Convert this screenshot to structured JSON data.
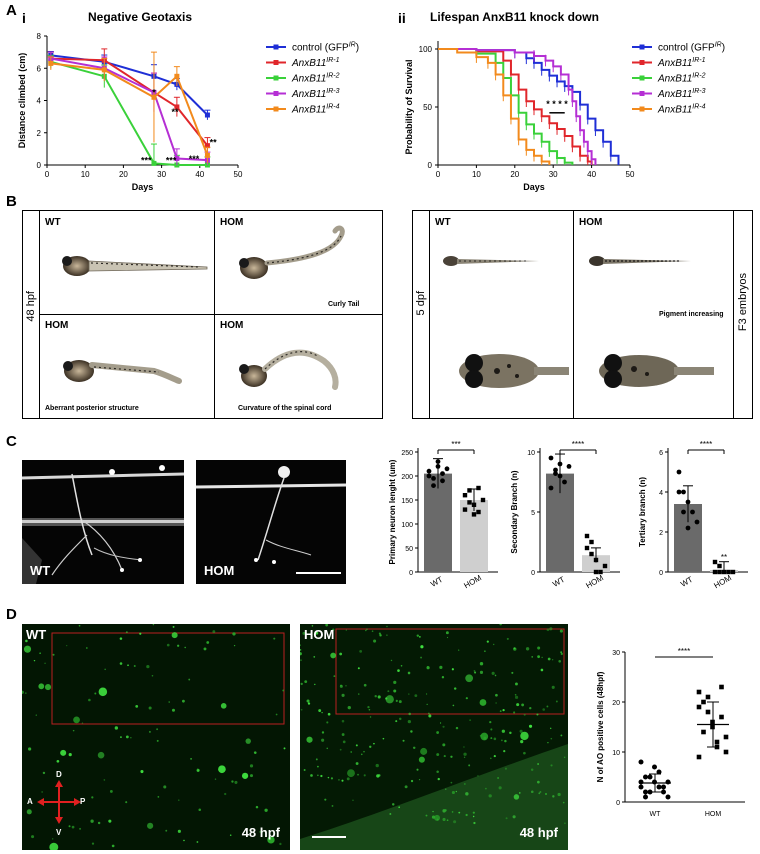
{
  "panels": {
    "A": {
      "letter": "A",
      "i": {
        "roman": "i",
        "title": "Negative Geotaxis",
        "xlabel": "Days",
        "ylabel": "Distance climbed (cm)",
        "xticks": [
          "0",
          "10",
          "20",
          "30",
          "40",
          "50"
        ],
        "yticks": [
          "0",
          "2",
          "4",
          "6",
          "8"
        ],
        "sig": [
          "*",
          "**",
          "***",
          "***",
          "***",
          "**"
        ]
      },
      "ii": {
        "roman": "ii",
        "title": "Lifespan AnxB11 knock down",
        "xlabel": "Days",
        "ylabel": "Probability of Survival",
        "xticks": [
          "0",
          "10",
          "20",
          "30",
          "40",
          "50"
        ],
        "yticks": [
          "0",
          "50",
          "100"
        ],
        "sig": "* * * *"
      },
      "legend": [
        {
          "name": "control (GFP",
          "sup": "IR",
          "tail": ")",
          "color": "#1f2fd6"
        },
        {
          "name": "AnxB11",
          "sup": "IR-1",
          "tail": "",
          "color": "#e0262b"
        },
        {
          "name": "AnxB11",
          "sup": "IR-2",
          "tail": "",
          "color": "#3ad13a"
        },
        {
          "name": "AnxB11",
          "sup": "IR-3",
          "tail": "",
          "color": "#b52fd4"
        },
        {
          "name": "AnxB11",
          "sup": "IR-4",
          "tail": "",
          "color": "#f28a1c"
        }
      ]
    },
    "B": {
      "letter": "B",
      "left": {
        "side_label": "48 hpf",
        "cells": [
          {
            "label": "WT",
            "caption": ""
          },
          {
            "label": "HOM",
            "caption": "Curly Tail"
          },
          {
            "label": "HOM",
            "caption": "Aberrant posterior structure"
          },
          {
            "label": "HOM",
            "caption": "Curvature of the spinal cord"
          }
        ]
      },
      "right": {
        "side_label": "5 dpf",
        "right_label": "F3 embryos",
        "cells": [
          {
            "label": "WT",
            "caption": ""
          },
          {
            "label": "HOM",
            "caption": "Pigment increasing"
          }
        ]
      }
    },
    "C": {
      "letter": "C",
      "img_labels": [
        "WT",
        "HOM"
      ],
      "bars": [
        {
          "ylabel": "Primary neuron lenght (um)",
          "yticks": [
            "0",
            "50",
            "100",
            "150",
            "200",
            "250"
          ],
          "sig": "***",
          "cats": [
            "WT",
            "HOM"
          ]
        },
        {
          "ylabel": "Secondary Branch (n)",
          "yticks": [
            "0",
            "5",
            "10"
          ],
          "sig": "****",
          "cats": [
            "WT",
            "HOM"
          ]
        },
        {
          "ylabel": "Tertiary branch (n)",
          "yticks": [
            "0",
            "2",
            "4",
            "6"
          ],
          "sig": "****",
          "cats": [
            "WT",
            "HOM"
          ],
          "extra": "**"
        }
      ]
    },
    "D": {
      "letter": "D",
      "img_labels": [
        "WT",
        "HOM"
      ],
      "time_labels": [
        "48 hpf",
        "48 hpf"
      ],
      "axes": {
        "D": "D",
        "A": "A",
        "P": "P",
        "V": "V"
      },
      "plot": {
        "ylabel": "N of AO positive cells (48hpf)",
        "yticks": [
          "0",
          "10",
          "20",
          "30"
        ],
        "cats": [
          "WT",
          "HOM"
        ],
        "sig": "****"
      }
    }
  },
  "chart_data": [
    {
      "type": "line",
      "title": "Negative Geotaxis",
      "xlabel": "Days",
      "ylabel": "Distance climbed (cm)",
      "xlim": [
        0,
        50
      ],
      "ylim": [
        0,
        8
      ],
      "series": [
        {
          "name": "control (GFPIR)",
          "x": [
            1,
            15,
            28,
            34,
            42
          ],
          "y": [
            6.8,
            6.4,
            5.5,
            5.0,
            3.1
          ]
        },
        {
          "name": "AnxB11IR-1",
          "x": [
            1,
            15,
            28,
            34,
            42
          ],
          "y": [
            6.6,
            6.5,
            4.5,
            3.6,
            1.2
          ]
        },
        {
          "name": "AnxB11IR-2",
          "x": [
            1,
            15,
            28,
            34,
            42
          ],
          "y": [
            6.4,
            5.5,
            0.1,
            0.0,
            0.0
          ]
        },
        {
          "name": "AnxB11IR-3",
          "x": [
            1,
            15,
            28,
            34,
            42
          ],
          "y": [
            6.6,
            6.0,
            4.5,
            0.4,
            0.3
          ]
        },
        {
          "name": "AnxB11IR-4",
          "x": [
            1,
            15,
            28,
            34,
            42
          ],
          "y": [
            6.3,
            5.9,
            4.2,
            5.5,
            0.6
          ]
        }
      ]
    },
    {
      "type": "line",
      "title": "Lifespan AnxB11 knock down",
      "xlabel": "Days",
      "ylabel": "Probability of Survival",
      "xlim": [
        0,
        50
      ],
      "ylim": [
        0,
        100
      ],
      "series": [
        {
          "name": "control (GFPIR)",
          "x": [
            0,
            10,
            20,
            23,
            25,
            27,
            29,
            31,
            33,
            35,
            37,
            39,
            41,
            43,
            45,
            47
          ],
          "y": [
            100,
            99,
            97,
            92,
            88,
            82,
            77,
            72,
            68,
            63,
            52,
            40,
            30,
            20,
            8,
            0
          ]
        },
        {
          "name": "AnxB11IR-1",
          "x": [
            0,
            10,
            17,
            19,
            21,
            23,
            25,
            27,
            29,
            31,
            33,
            35,
            37,
            39,
            40
          ],
          "y": [
            100,
            98,
            90,
            78,
            65,
            55,
            48,
            42,
            36,
            31,
            25,
            16,
            8,
            3,
            0
          ]
        },
        {
          "name": "AnxB11IR-2",
          "x": [
            0,
            10,
            15,
            17,
            19,
            21,
            23,
            25,
            27,
            29,
            31,
            33,
            35
          ],
          "y": [
            100,
            96,
            88,
            75,
            60,
            45,
            35,
            27,
            20,
            12,
            6,
            2,
            0
          ]
        },
        {
          "name": "AnxB11IR-3",
          "x": [
            0,
            10,
            20,
            25,
            28,
            30,
            32,
            34,
            35,
            36,
            37,
            38,
            39,
            40,
            41
          ],
          "y": [
            100,
            99,
            97,
            94,
            90,
            85,
            78,
            65,
            55,
            42,
            30,
            20,
            12,
            5,
            0
          ]
        },
        {
          "name": "AnxB11IR-4",
          "x": [
            0,
            5,
            10,
            13,
            15,
            17,
            19,
            21,
            23,
            25,
            27,
            29
          ],
          "y": [
            100,
            97,
            93,
            88,
            78,
            60,
            40,
            22,
            13,
            8,
            3,
            0
          ]
        }
      ]
    },
    {
      "type": "bar",
      "ylabel": "Primary neuron lenght (um)",
      "categories": [
        "WT",
        "HOM"
      ],
      "values": [
        205,
        150
      ],
      "ylim": [
        0,
        250
      ],
      "points": [
        [
          210,
          195,
          230,
          190,
          215,
          200,
          180,
          220,
          205
        ],
        [
          160,
          145,
          120,
          175,
          150,
          130,
          170,
          140,
          125
        ]
      ]
    },
    {
      "type": "bar",
      "ylabel": "Secondary Branch (n)",
      "categories": [
        "WT",
        "HOM"
      ],
      "values": [
        8.2,
        1.4
      ],
      "ylim": [
        0,
        10
      ],
      "points": [
        [
          9.5,
          8.5,
          8,
          7.5,
          8.8,
          7,
          8.2,
          9
        ],
        [
          3,
          2.5,
          1,
          0,
          0.5,
          2,
          1.5,
          0
        ]
      ]
    },
    {
      "type": "bar",
      "ylabel": "Tertiary branch (n)",
      "categories": [
        "WT",
        "HOM"
      ],
      "values": [
        3.4,
        0.1
      ],
      "ylim": [
        0,
        6
      ],
      "points": [
        [
          5,
          4,
          3.5,
          3,
          2.5,
          4,
          3,
          2.2
        ],
        [
          0.5,
          0,
          0,
          0,
          0,
          0,
          0.3
        ]
      ]
    },
    {
      "type": "scatter",
      "ylabel": "N of AO positive cells (48hpf)",
      "categories": [
        "WT",
        "HOM"
      ],
      "means": [
        3.8,
        15.5
      ],
      "ylim": [
        0,
        30
      ],
      "points": [
        [
          3,
          5,
          2,
          4,
          6,
          3,
          1,
          4,
          2,
          5,
          7,
          3,
          2,
          4,
          8,
          1
        ],
        [
          22,
          20,
          18,
          15,
          12,
          17,
          10,
          19,
          14,
          21,
          16,
          11,
          23,
          13,
          9
        ]
      ]
    }
  ]
}
